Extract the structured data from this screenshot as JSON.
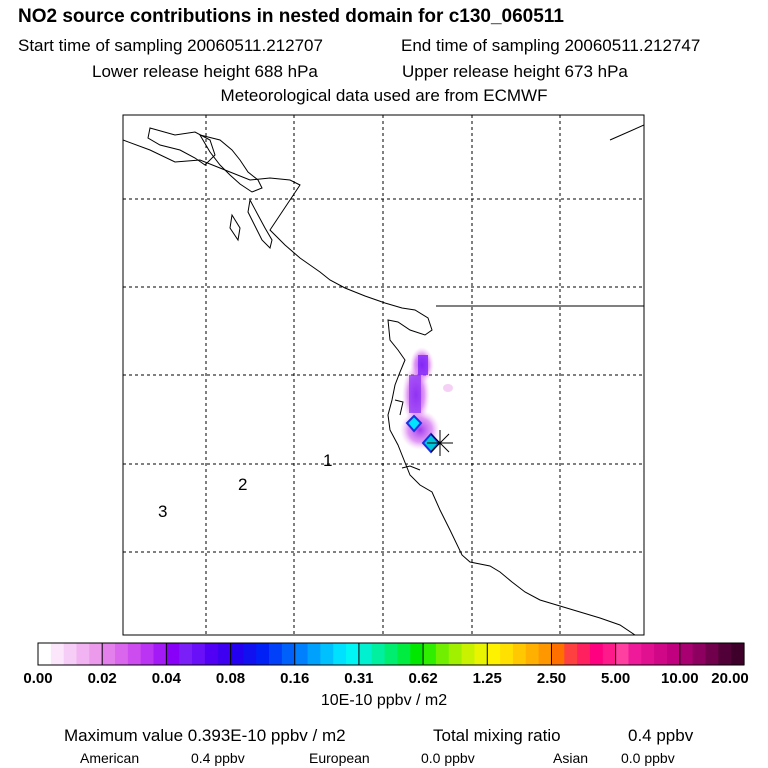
{
  "header": {
    "title": "NO2 source contributions in nested domain for c130_060511",
    "start_time": "Start time of sampling 20060511.212707",
    "end_time": "End time of sampling 20060511.212747",
    "lower_release": "Lower release height  688 hPa",
    "upper_release": "Upper release height  673 hPa",
    "met_data": "Meteorological data used are from ECMWF"
  },
  "map": {
    "region_labels": [
      "1",
      "2",
      "3"
    ],
    "release_marker": "asterisk-marker"
  },
  "colorbar": {
    "tick_labels": [
      "0.00",
      "0.02",
      "0.04",
      "0.08",
      "0.16",
      "0.31",
      "0.62",
      "1.25",
      "2.50",
      "5.00",
      "10.00",
      "20.00"
    ],
    "colors": [
      "#ffffff",
      "#fbe6fb",
      "#f6cdf6",
      "#f1b3f1",
      "#ec9aec",
      "#e380ec",
      "#d966ec",
      "#cc4cf0",
      "#bb33f3",
      "#a31af6",
      "#8800f8",
      "#7a1ff8",
      "#6a10f8",
      "#5200f5",
      "#3d00f0",
      "#2400f0",
      "#1010f0",
      "#0020f6",
      "#0040f8",
      "#0060fa",
      "#0080fc",
      "#00a0fd",
      "#00c0fe",
      "#00e0ff",
      "#00f5f5",
      "#00f0d0",
      "#00f0a0",
      "#00ee70",
      "#00ec40",
      "#00e800",
      "#30ee00",
      "#70f000",
      "#a0f000",
      "#c8f200",
      "#e8f400",
      "#fff200",
      "#ffe000",
      "#ffc800",
      "#ffb000",
      "#ff9800",
      "#ff7000",
      "#ff4040",
      "#ff2060",
      "#ff0080",
      "#ff1a8c",
      "#ff40a0",
      "#ee1a9a",
      "#e01090",
      "#d00888",
      "#c0007e",
      "#a80070",
      "#8e0060",
      "#70004c",
      "#520038",
      "#3e002a"
    ],
    "units": "10E-10 ppbv / m2"
  },
  "footer": {
    "max_value": "Maximum value  0.393E-10 ppbv / m2",
    "total_label": "Total mixing ratio",
    "total_value": "0.4 ppbv",
    "regions": [
      {
        "name": "American",
        "value": "0.4 ppbv"
      },
      {
        "name": "European",
        "value": "0.0 ppbv"
      },
      {
        "name": "Asian",
        "value": "0.0 ppbv"
      }
    ]
  }
}
